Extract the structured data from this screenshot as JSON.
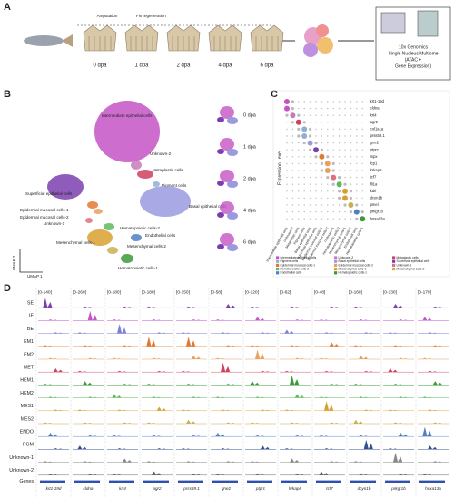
{
  "panel_a": {
    "label": "A",
    "timepoints": [
      "0 dpa",
      "1 dpa",
      "2 dpa",
      "4 dpa",
      "6 dpa"
    ],
    "annotations": [
      "Amputation",
      "Fin regeneration"
    ],
    "platform": [
      "10x Genomics",
      "Single Nucleus Multiome",
      "(ATAC +",
      "Gene Expression)"
    ]
  },
  "panel_b": {
    "label": "B",
    "clusters": [
      {
        "name": "Intermediate epithelial cells",
        "color": "#c453c4"
      },
      {
        "name": "Unknown-2",
        "color": "#c87ab8"
      },
      {
        "name": "Metaplastic cells",
        "color": "#d04060"
      },
      {
        "name": "Pigment cells",
        "color": "#8fb0d0"
      },
      {
        "name": "Basal epithelial cells",
        "color": "#9a9ae0"
      },
      {
        "name": "Superficial epithelial cells",
        "color": "#7b3fb0"
      },
      {
        "name": "Epidermal mucosal cells-1",
        "color": "#e07a30"
      },
      {
        "name": "Epidermal mucosal cells-2",
        "color": "#e8a060"
      },
      {
        "name": "Unknown-1",
        "color": "#e07080"
      },
      {
        "name": "Hematopoietic cells-2",
        "color": "#5fb85f"
      },
      {
        "name": "Mesenchymal cells-1",
        "color": "#d8a030"
      },
      {
        "name": "Mesenchymal cells-2",
        "color": "#c8b050"
      },
      {
        "name": "Endothelial cells",
        "color": "#5080c0"
      },
      {
        "name": "Hematopoietic cells-1",
        "color": "#3a9a3a"
      }
    ],
    "timepoints": [
      "0 dpa",
      "1 dpa",
      "2 dpa",
      "4 dpa",
      "6 dpa"
    ],
    "x_axis": "UMAP 1",
    "y_axis": "UMAP 2"
  },
  "panel_c": {
    "label": "C",
    "legend_title": "Expression Level",
    "genes": [
      "krt1-19d",
      "cldna",
      "krt4",
      "agr2",
      "col1a1a",
      "prss59.1",
      "gne2",
      "ptprc",
      "mpx",
      "lcp1",
      "lrrkap8",
      "tcf7",
      "fli1a",
      "kdrl",
      "dcyn1b",
      "pmel",
      "prkgr1b",
      "hoxa13a"
    ]
  },
  "panel_d": {
    "label": "D",
    "rows": [
      {
        "name": "SE",
        "color": "#7b3fb0"
      },
      {
        "name": "IE",
        "color": "#c453c4"
      },
      {
        "name": "BE",
        "color": "#7f7fd8"
      },
      {
        "name": "EM1",
        "color": "#e07a30"
      },
      {
        "name": "EM2",
        "color": "#e8a060"
      },
      {
        "name": "MET",
        "color": "#d04060"
      },
      {
        "name": "HEM1",
        "color": "#3a9a3a"
      },
      {
        "name": "HEM2",
        "color": "#5fb85f"
      },
      {
        "name": "MES1",
        "color": "#d8a030"
      },
      {
        "name": "MES2",
        "color": "#c8b050"
      },
      {
        "name": "ENDO",
        "color": "#5080c0"
      },
      {
        "name": "PGM",
        "color": "#2f4f8f"
      },
      {
        "name": "Unknown-1",
        "color": "#888888"
      },
      {
        "name": "Unknown-2",
        "color": "#555555"
      }
    ],
    "ranges": [
      "[0-140]",
      "[0-260]",
      "[0-180]",
      "[0-180]",
      "[0-150]",
      "[0-58]",
      "[0-120]",
      "[0-62]",
      "[0-48]",
      "[0-160]",
      "[0-130]",
      "[0-170]"
    ],
    "genes_label": "Genes",
    "genes": [
      "krt1-19d",
      "cldna",
      "krt4",
      "agr2",
      "prss59.1",
      "gne2",
      "ptprc",
      "lrrkap8",
      "tcf7",
      "dcyn1b",
      "prkgr1b",
      "hoxa13a"
    ]
  }
}
